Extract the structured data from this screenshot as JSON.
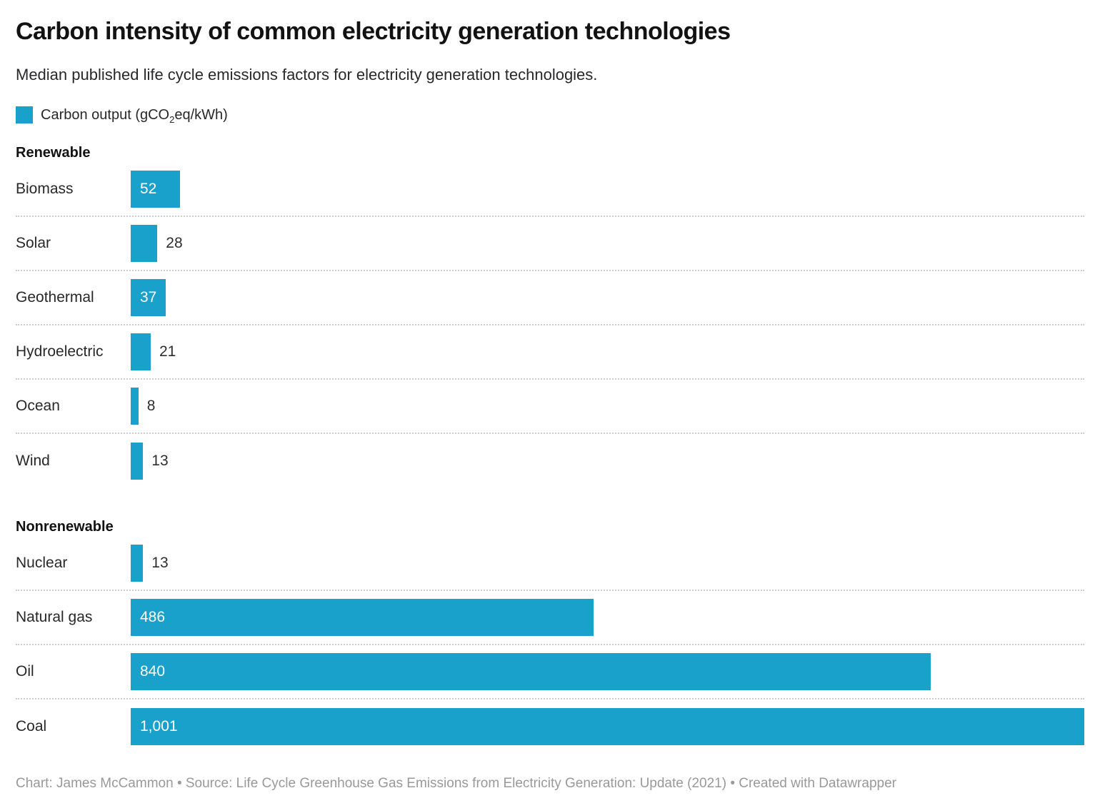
{
  "header": {
    "title": "Carbon intensity of common electricity generation technologies",
    "subtitle": "Median published life cycle emissions factors for electricity generation technologies."
  },
  "legend": {
    "label_prefix": "Carbon output (gCO",
    "label_sub": "2",
    "label_suffix": "eq/kWh)"
  },
  "footer": {
    "text": "Chart: James McCammon • Source: Life Cycle Greenhouse Gas Emissions from Electricity Generation: Update (2021) • Created with Datawrapper"
  },
  "colors": {
    "bar": "#1AA1CB",
    "value_inside": "#ffffff",
    "value_outside": "#2e2e2e",
    "separator": "#cdcdcd",
    "footer_text": "#999999"
  },
  "chart_data": {
    "type": "bar",
    "orientation": "horizontal",
    "title": "Carbon intensity of common electricity generation technologies",
    "value_axis_label": "Carbon output (gCO2eq/kWh)",
    "xlim": [
      0,
      1001
    ],
    "grid": false,
    "legend_position": "top-left",
    "groups": [
      {
        "name": "Renewable",
        "items": [
          {
            "label": "Biomass",
            "value": 52,
            "display": "52"
          },
          {
            "label": "Solar",
            "value": 28,
            "display": "28"
          },
          {
            "label": "Geothermal",
            "value": 37,
            "display": "37"
          },
          {
            "label": "Hydroelectric",
            "value": 21,
            "display": "21"
          },
          {
            "label": "Ocean",
            "value": 8,
            "display": "8"
          },
          {
            "label": "Wind",
            "value": 13,
            "display": "13"
          }
        ]
      },
      {
        "name": "Nonrenewable",
        "items": [
          {
            "label": "Nuclear",
            "value": 13,
            "display": "13"
          },
          {
            "label": "Natural gas",
            "value": 486,
            "display": "486"
          },
          {
            "label": "Oil",
            "value": 840,
            "display": "840"
          },
          {
            "label": "Coal",
            "value": 1001,
            "display": "1,001"
          }
        ]
      }
    ]
  }
}
